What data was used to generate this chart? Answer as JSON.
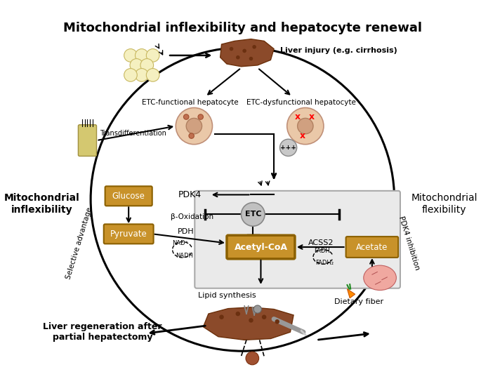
{
  "title": "Mitochondrial inflexibility and hepatocyte renewal",
  "title_fontsize": 13,
  "title_fontweight": "bold",
  "bg_color": "#ffffff",
  "text_labels": {
    "liver_injury": "Liver injury (e.g. cirrhosis)",
    "etc_functional": "ETC-functional hepatocyte",
    "etc_dysfunctional": "ETC-dysfunctional hepatocyte",
    "transdifferentiation": "Transdifferentiation",
    "pdk4": "PDK4",
    "beta_oxidation": "β-Oxidation",
    "etc_circle": "ETC",
    "glucose": "Glucose",
    "pyruvate": "Pyruvate",
    "pdh": "PDH",
    "nad_plus": "NAD⁺",
    "nadh": "NADH",
    "acetyl_coa": "Acetyl-CoA",
    "acss2": "ACSS2",
    "fadh": "FADH",
    "fadh2": "FADH₂",
    "acetate": "Acetate",
    "lipid_synthesis": "Lipid synthesis",
    "dietary_fiber": "Dietary fiber",
    "mito_inflexibility": "Mitochondrial\ninflexibility",
    "mito_flexibility": "Mitochondrial\nflexibility",
    "selective_advantage": "Selective advantage",
    "pdk4_inhibition": "PDK4 inhibition",
    "liver_regen": "Liver regeneration after\npartial hepatectomy",
    "plus_plus_plus": "+++"
  }
}
